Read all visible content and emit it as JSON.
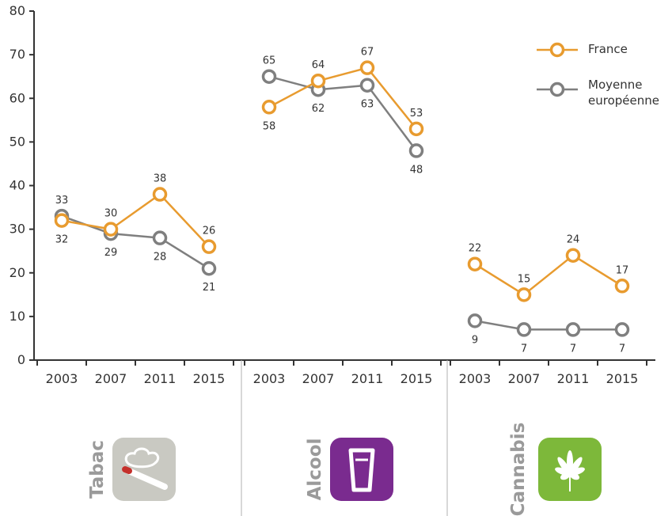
{
  "chart_data": {
    "type": "line",
    "ylim": [
      0,
      80
    ],
    "yticks": [
      0,
      10,
      20,
      30,
      40,
      50,
      60,
      70,
      80
    ],
    "x_ticks": [
      "2003",
      "2007",
      "2011",
      "2015"
    ],
    "grid": false,
    "legend_position": "top-right",
    "legend": [
      "France",
      "Moyenne européenne"
    ],
    "colors": {
      "france": "#e89b2f",
      "europe": "#7f7f7f"
    },
    "groups": [
      {
        "label": "Tabac",
        "icon": "cigarette-icon",
        "icon_color": "#c9c9c2",
        "series": [
          {
            "name": "France",
            "values": [
              32,
              30,
              38,
              26
            ]
          },
          {
            "name": "Moyenne européenne",
            "values": [
              33,
              29,
              28,
              21
            ]
          }
        ]
      },
      {
        "label": "Alcool",
        "icon": "beer-glass-icon",
        "icon_color": "#7a2b8f",
        "series": [
          {
            "name": "France",
            "values": [
              58,
              64,
              67,
              53
            ]
          },
          {
            "name": "Moyenne européenne",
            "values": [
              65,
              62,
              63,
              48
            ]
          }
        ]
      },
      {
        "label": "Cannabis",
        "icon": "cannabis-leaf-icon",
        "icon_color": "#7db83a",
        "series": [
          {
            "name": "France",
            "values": [
              22,
              15,
              24,
              17
            ]
          },
          {
            "name": "Moyenne européenne",
            "values": [
              9,
              7,
              7,
              7
            ]
          }
        ]
      }
    ]
  }
}
